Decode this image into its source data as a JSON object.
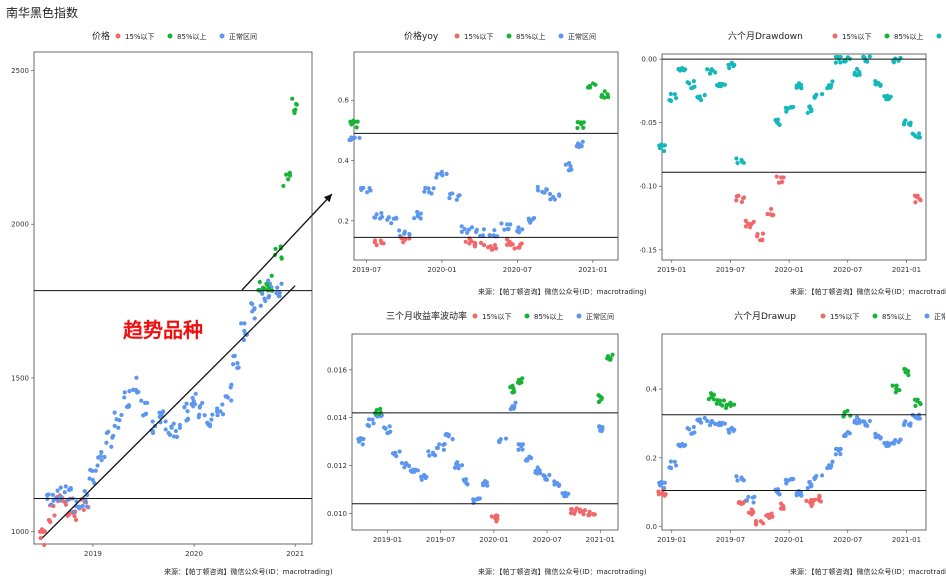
{
  "page_title": "南华黑色指数",
  "annotation": "趋势品种",
  "legend": {
    "low": "15%以下",
    "high": "85%以上",
    "normal": "正常区间"
  },
  "source_text": "来源：【帕丁顿咨询】微信公众号(ID：macrotrading)",
  "colors": {
    "low": "#f0686a",
    "high": "#16b337",
    "normal": "#5c96ee",
    "normal_teal": "#14b8ba",
    "annotation": "#ee1010"
  },
  "chart_data": [
    {
      "id": "price",
      "type": "scatter",
      "legend_title": "价格",
      "x_ticks": [
        "2019",
        "2020",
        "2021"
      ],
      "y_ticks": [
        "1000",
        "1500",
        "2000",
        "2500"
      ],
      "ylim": [
        960,
        2560
      ],
      "hlines": [
        1108,
        1784
      ],
      "trend_arrow": {
        "from": [
          "2018-07",
          980
        ],
        "to": [
          "2021-01",
          1800
        ]
      },
      "x": [
        "2018-07",
        "2018-08",
        "2018-09",
        "2018-10",
        "2018-11",
        "2018-12",
        "2019-01",
        "2019-02",
        "2019-03",
        "2019-04",
        "2019-05",
        "2019-06",
        "2019-07",
        "2019-08",
        "2019-09",
        "2019-10",
        "2019-11",
        "2019-12",
        "2020-01",
        "2020-02",
        "2020-03",
        "2020-04",
        "2020-05",
        "2020-06",
        "2020-07",
        "2020-08",
        "2020-09",
        "2020-10",
        "2020-11",
        "2020-12",
        "2021-01"
      ],
      "series": [
        {
          "group": "low",
          "values": [
            980,
            1060,
            1090,
            1080,
            1060,
            1085,
            null,
            null,
            null,
            null,
            null,
            null,
            null,
            null,
            null,
            null,
            null,
            null,
            null,
            null,
            null,
            null,
            null,
            null,
            null,
            null,
            null,
            null,
            null,
            null,
            null
          ]
        },
        {
          "group": "normal",
          "values": [
            null,
            1100,
            1130,
            1120,
            1090,
            1110,
            1180,
            1230,
            1300,
            1360,
            1430,
            1480,
            1400,
            1340,
            1370,
            1330,
            1330,
            1390,
            1420,
            1400,
            1370,
            1400,
            1450,
            1560,
            1650,
            1720,
            1760,
            1790,
            1780,
            null,
            null
          ]
        },
        {
          "group": "high",
          "values": [
            null,
            null,
            null,
            null,
            null,
            null,
            null,
            null,
            null,
            null,
            null,
            null,
            null,
            null,
            null,
            null,
            null,
            null,
            null,
            null,
            null,
            null,
            null,
            null,
            null,
            null,
            1800,
            1810,
            1900,
            2150,
            2380
          ]
        }
      ]
    },
    {
      "id": "yoy",
      "type": "scatter",
      "legend_title": "价格yoy",
      "x_ticks": [
        "2019-07",
        "2020-01",
        "2020-07",
        "2021-01"
      ],
      "y_ticks": [
        "0.2",
        "0.4",
        "0.6"
      ],
      "ylim": [
        0.07,
        0.76
      ],
      "hlines": [
        0.145,
        0.49
      ],
      "x": [
        "2019-06",
        "2019-07",
        "2019-08",
        "2019-09",
        "2019-10",
        "2019-11",
        "2019-12",
        "2020-01",
        "2020-02",
        "2020-03",
        "2020-04",
        "2020-05",
        "2020-06",
        "2020-07",
        "2020-08",
        "2020-09",
        "2020-10",
        "2020-11",
        "2020-12",
        "2021-01",
        "2021-02"
      ],
      "series": [
        {
          "group": "high",
          "values": [
            0.52,
            null,
            null,
            null,
            null,
            null,
            null,
            null,
            null,
            null,
            null,
            null,
            null,
            null,
            null,
            null,
            null,
            null,
            0.52,
            0.65,
            0.62
          ]
        },
        {
          "group": "normal",
          "values": [
            0.48,
            0.3,
            0.22,
            0.2,
            0.16,
            0.22,
            0.3,
            0.35,
            0.28,
            0.17,
            0.16,
            0.16,
            0.18,
            0.17,
            0.2,
            0.3,
            0.28,
            0.38,
            0.45,
            null,
            null
          ]
        },
        {
          "group": "low",
          "values": [
            null,
            null,
            0.13,
            null,
            0.14,
            null,
            null,
            null,
            null,
            0.13,
            0.12,
            0.11,
            0.13,
            0.12,
            null,
            null,
            null,
            null,
            null,
            null,
            null
          ]
        }
      ]
    },
    {
      "id": "drawdown",
      "type": "scatter",
      "legend_title": "六个月Drawdown",
      "x_ticks": [
        "2019-01",
        "2019-07",
        "2020-01",
        "2020-07",
        "2021-01"
      ],
      "y_ticks": [
        "0.00",
        "-0.05",
        "-0.10",
        "-0.15"
      ],
      "ylim": [
        -0.158,
        0.004
      ],
      "hlines": [
        0,
        -0.089
      ],
      "x": [
        "2018-12",
        "2019-01",
        "2019-02",
        "2019-03",
        "2019-04",
        "2019-05",
        "2019-06",
        "2019-07",
        "2019-08",
        "2019-09",
        "2019-10",
        "2019-11",
        "2019-12",
        "2020-01",
        "2020-02",
        "2020-03",
        "2020-04",
        "2020-05",
        "2020-06",
        "2020-07",
        "2020-08",
        "2020-09",
        "2020-10",
        "2020-11",
        "2020-12",
        "2021-01",
        "2021-02"
      ],
      "series": [
        {
          "group": "normal",
          "values": [
            -0.07,
            -0.03,
            -0.01,
            -0.02,
            -0.03,
            -0.01,
            -0.02,
            -0.005,
            -0.08,
            null,
            null,
            null,
            -0.05,
            -0.04,
            -0.02,
            -0.04,
            -0.03,
            -0.02,
            0,
            0,
            -0.01,
            0,
            -0.02,
            -0.03,
            0,
            -0.05,
            -0.06
          ]
        },
        {
          "group": "low",
          "values": [
            null,
            null,
            null,
            null,
            null,
            null,
            null,
            null,
            -0.11,
            -0.13,
            -0.14,
            -0.12,
            -0.095,
            null,
            null,
            null,
            null,
            null,
            null,
            null,
            null,
            null,
            null,
            null,
            null,
            null,
            -0.11
          ]
        }
      ]
    },
    {
      "id": "volatility",
      "type": "scatter",
      "legend_title": "三个月收益率波动率",
      "x_ticks": [
        "2019-01",
        "2019-07",
        "2020-01",
        "2020-07",
        "2021-01"
      ],
      "y_ticks": [
        "0.010",
        "0.012",
        "0.014",
        "0.016"
      ],
      "ylim": [
        0.0093,
        0.0175
      ],
      "hlines": [
        0.0142,
        0.0104
      ],
      "x": [
        "2018-10",
        "2018-11",
        "2018-12",
        "2019-01",
        "2019-02",
        "2019-03",
        "2019-04",
        "2019-05",
        "2019-06",
        "2019-07",
        "2019-08",
        "2019-09",
        "2019-10",
        "2019-11",
        "2019-12",
        "2020-01",
        "2020-02",
        "2020-03",
        "2020-04",
        "2020-05",
        "2020-06",
        "2020-07",
        "2020-08",
        "2020-09",
        "2020-10",
        "2020-11",
        "2020-12",
        "2021-01",
        "2021-02"
      ],
      "series": [
        {
          "group": "normal",
          "values": [
            0.013,
            0.0138,
            0.014,
            0.0135,
            0.0125,
            0.012,
            0.0118,
            0.0115,
            0.0125,
            0.0128,
            0.0132,
            0.012,
            0.0113,
            0.0105,
            0.0113,
            null,
            0.013,
            0.0145,
            0.0128,
            0.0123,
            0.0118,
            0.0115,
            0.0112,
            0.0108,
            null,
            null,
            null,
            0.0135,
            null
          ]
        },
        {
          "group": "high",
          "values": [
            null,
            null,
            0.0143,
            null,
            null,
            null,
            null,
            null,
            null,
            null,
            null,
            null,
            null,
            null,
            null,
            null,
            null,
            0.0152,
            0.0155,
            null,
            null,
            null,
            null,
            null,
            null,
            null,
            null,
            0.0148,
            0.0165
          ]
        },
        {
          "group": "low",
          "values": [
            null,
            null,
            null,
            null,
            null,
            null,
            null,
            null,
            null,
            null,
            null,
            null,
            null,
            null,
            null,
            0.0098,
            null,
            null,
            null,
            null,
            null,
            null,
            null,
            null,
            0.0101,
            0.0101,
            0.01,
            null,
            null
          ]
        }
      ]
    },
    {
      "id": "drawup",
      "type": "scatter",
      "legend_title": "六个月Drawup",
      "x_ticks": [
        "2019-01",
        "2019-07",
        "2020-01",
        "2020-07",
        "2021-01"
      ],
      "y_ticks": [
        "0.0",
        "0.2",
        "0.4"
      ],
      "ylim": [
        -0.01,
        0.56
      ],
      "hlines": [
        0.325,
        0.105
      ],
      "x": [
        "2018-12",
        "2019-01",
        "2019-02",
        "2019-03",
        "2019-04",
        "2019-05",
        "2019-06",
        "2019-07",
        "2019-08",
        "2019-09",
        "2019-10",
        "2019-11",
        "2019-12",
        "2020-01",
        "2020-02",
        "2020-03",
        "2020-04",
        "2020-05",
        "2020-06",
        "2020-07",
        "2020-08",
        "2020-09",
        "2020-10",
        "2020-11",
        "2020-12",
        "2021-01",
        "2021-02"
      ],
      "series": [
        {
          "group": "normal",
          "values": [
            0.12,
            0.18,
            0.23,
            0.28,
            0.31,
            0.3,
            0.3,
            0.28,
            0.14,
            0.08,
            null,
            null,
            0.1,
            0.13,
            0.1,
            0.12,
            0.14,
            0.18,
            0.22,
            0.27,
            0.31,
            0.3,
            0.26,
            0.24,
            0.25,
            0.3,
            0.32
          ]
        },
        {
          "group": "high",
          "values": [
            null,
            null,
            null,
            null,
            null,
            0.38,
            0.36,
            0.35,
            null,
            null,
            null,
            null,
            null,
            null,
            null,
            null,
            null,
            null,
            null,
            0.33,
            null,
            null,
            null,
            null,
            0.4,
            0.45,
            0.36
          ]
        },
        {
          "group": "low",
          "values": [
            0.1,
            null,
            null,
            null,
            null,
            null,
            null,
            null,
            0.07,
            0.04,
            0.01,
            0.03,
            0.06,
            null,
            null,
            0.07,
            0.08,
            null,
            null,
            null,
            null,
            null,
            null,
            null,
            null,
            null,
            null
          ]
        }
      ]
    }
  ]
}
